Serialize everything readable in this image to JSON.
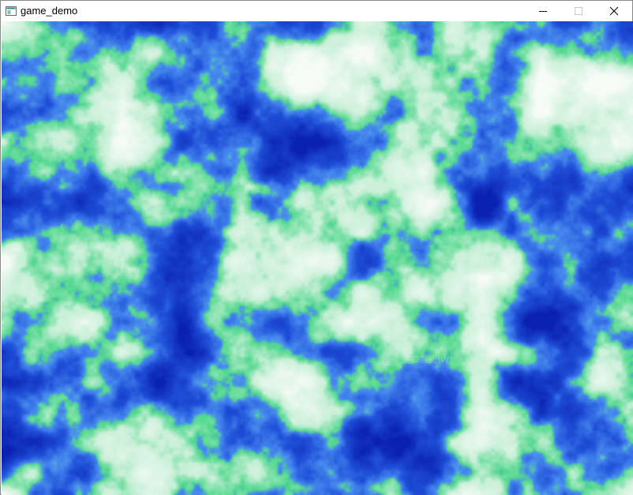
{
  "window": {
    "title": "game_demo",
    "controls": {
      "minimize_icon": "minimize-icon",
      "maximize_icon": "maximize-icon",
      "close_icon": "close-icon"
    }
  },
  "scene": {
    "description_type": "procedural-noise-terrain",
    "colors": {
      "deep_water": "#0a20b0",
      "water": "#1f4fd8",
      "shallow_water": "#4a8ef0",
      "shore": "#52d88e",
      "land": "#c9f0d8",
      "peak": "#f6fbf7"
    }
  },
  "watermark": {
    "text": "窗口截图(W)"
  }
}
